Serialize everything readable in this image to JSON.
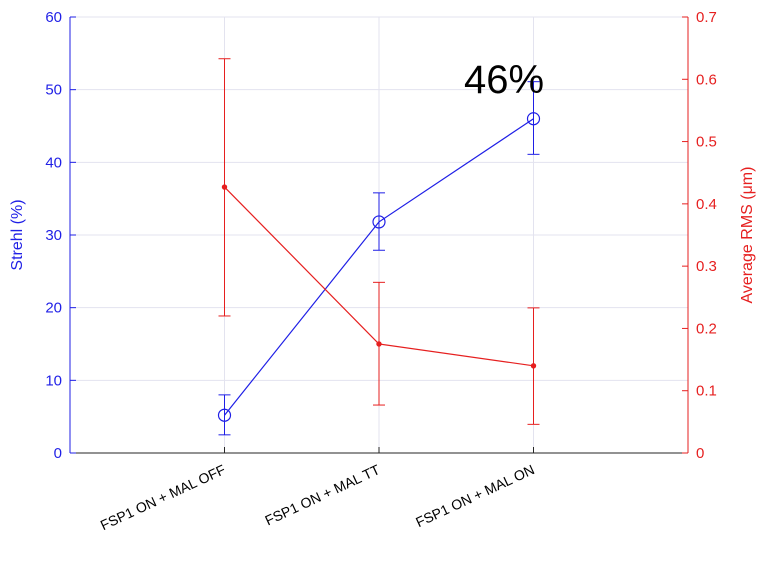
{
  "chart_data": {
    "type": "line",
    "categories": [
      "FSP1 ON + MAL OFF",
      "FSP1 ON + MAL TT",
      "FSP1 ON + MAL ON"
    ],
    "x_range": [
      0,
      4
    ],
    "y_left": {
      "label": "Strehl (%)",
      "range": [
        0,
        60
      ],
      "ticks": [
        0,
        10,
        20,
        30,
        40,
        50,
        60
      ],
      "color": "#1f1fe6"
    },
    "y_right": {
      "label": "Average RMS (μm)",
      "range": [
        0,
        0.7
      ],
      "ticks": [
        0,
        0.1,
        0.2,
        0.3,
        0.4,
        0.5,
        0.6,
        0.7
      ],
      "color": "#e61f1f"
    },
    "series": [
      {
        "axis": "left",
        "color": "#1f1fe6",
        "marker": "circle",
        "values": [
          5.2,
          31.8,
          46.0
        ],
        "err_low": [
          2.5,
          27.9,
          41.1
        ],
        "err_high": [
          8.0,
          35.8,
          51.1
        ]
      },
      {
        "axis": "right",
        "color": "#e61f1f",
        "marker": "dot",
        "values": [
          0.427,
          0.175,
          0.14
        ],
        "err_low": [
          0.22,
          0.077,
          0.046
        ],
        "err_high": [
          0.633,
          0.274,
          0.233
        ]
      }
    ],
    "annotations": [
      {
        "text": "46%",
        "x": 2.55,
        "y_left": 51.5
      }
    ],
    "grid": true
  }
}
